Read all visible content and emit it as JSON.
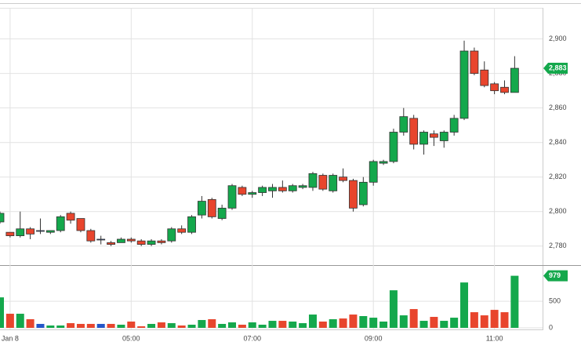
{
  "chart_data": {
    "type": "candlestick",
    "categories": [
      null,
      "Jan 8",
      null,
      null,
      null,
      null,
      null,
      null,
      null,
      null,
      null,
      null,
      null,
      "05:00",
      null,
      null,
      null,
      null,
      null,
      null,
      null,
      null,
      null,
      null,
      null,
      "07:00",
      null,
      null,
      null,
      null,
      null,
      null,
      null,
      null,
      null,
      null,
      null,
      "09:00",
      null,
      null,
      null,
      null,
      null,
      null,
      null,
      null,
      null,
      null,
      null,
      "11:00",
      null,
      null
    ],
    "open": [
      2794,
      2788,
      2786,
      2790,
      2789,
      2788,
      2789,
      2799,
      2796,
      2789,
      2784,
      2782,
      2782,
      2784,
      2783,
      2781,
      2783,
      2783,
      2790,
      2788,
      2798,
      2807,
      2796,
      2802,
      2814,
      2810,
      2811,
      2812,
      2814,
      2812,
      2814,
      2814,
      2821,
      2812,
      2820,
      2818,
      2804,
      2817,
      2828,
      2829,
      2846,
      2854,
      2839,
      2845,
      2841,
      2846,
      2854,
      2893,
      2882,
      2874,
      2872,
      2869
    ],
    "high": [
      2800,
      2788,
      2800,
      2791,
      2796,
      2789,
      2798,
      2800,
      2796,
      2790,
      2786,
      2783,
      2785,
      2785,
      2784,
      2784,
      2784,
      2791,
      2792,
      2798,
      2809,
      2808,
      2804,
      2816,
      2815,
      2812,
      2815,
      2816,
      2818,
      2816,
      2816,
      2823,
      2822,
      2822,
      2825,
      2819,
      2820,
      2830,
      2830,
      2848,
      2860,
      2856,
      2847,
      2847,
      2847,
      2856,
      2899,
      2895,
      2887,
      2875,
      2876,
      2890
    ],
    "low": [
      2793,
      2785,
      2785,
      2784,
      2787,
      2787,
      2788,
      2793,
      2788,
      2782,
      2781,
      2780,
      2782,
      2782,
      2780,
      2780,
      2781,
      2782,
      2787,
      2787,
      2796,
      2796,
      2795,
      2801,
      2809,
      2808,
      2809,
      2808,
      2811,
      2811,
      2813,
      2812,
      2812,
      2811,
      2817,
      2800,
      2803,
      2815,
      2827,
      2828,
      2844,
      2836,
      2833,
      2838,
      2837,
      2844,
      2853,
      2879,
      2872,
      2868,
      2868,
      2869
    ],
    "close": [
      2799,
      2786,
      2790,
      2787,
      2789,
      2789,
      2797,
      2795,
      2789,
      2783,
      2784,
      2781,
      2784,
      2783,
      2781,
      2783,
      2782,
      2790,
      2788,
      2797,
      2806,
      2797,
      2802,
      2815,
      2810,
      2811,
      2814,
      2814,
      2812,
      2815,
      2815,
      2822,
      2813,
      2821,
      2818,
      2802,
      2817,
      2829,
      2829,
      2846,
      2855,
      2839,
      2846,
      2843,
      2846,
      2854,
      2893,
      2880,
      2873,
      2870,
      2869,
      2883
    ],
    "ylim": [
      2769,
      2918
    ],
    "yticks": [
      {
        "value": 2780,
        "label": "2,780"
      },
      {
        "value": 2800,
        "label": "2,800"
      },
      {
        "value": 2820,
        "label": "2,820"
      },
      {
        "value": 2840,
        "label": "2,840"
      },
      {
        "value": 2860,
        "label": "2,860"
      },
      {
        "value": 2880,
        "label": "2,880"
      },
      {
        "value": 2900,
        "label": "2,900"
      }
    ],
    "last_price": {
      "value": 2883,
      "label": "2,883"
    },
    "up_color": "#14a84c",
    "down_color": "#e8452d",
    "flat_color": "#2456c8",
    "grid": true,
    "volume": {
      "values": [
        573,
        265,
        265,
        162,
        74,
        44,
        44,
        88,
        74,
        74,
        74,
        74,
        59,
        118,
        29,
        74,
        103,
        88,
        44,
        59,
        147,
        162,
        74,
        103,
        59,
        103,
        59,
        132,
        132,
        118,
        88,
        250,
        118,
        162,
        176,
        250,
        221,
        191,
        118,
        706,
        235,
        353,
        132,
        206,
        132,
        191,
        853,
        294,
        235,
        338,
        294,
        979
      ],
      "ylim": [
        0,
        1150
      ],
      "yticks": [
        0,
        500
      ],
      "last_value": 979
    }
  }
}
